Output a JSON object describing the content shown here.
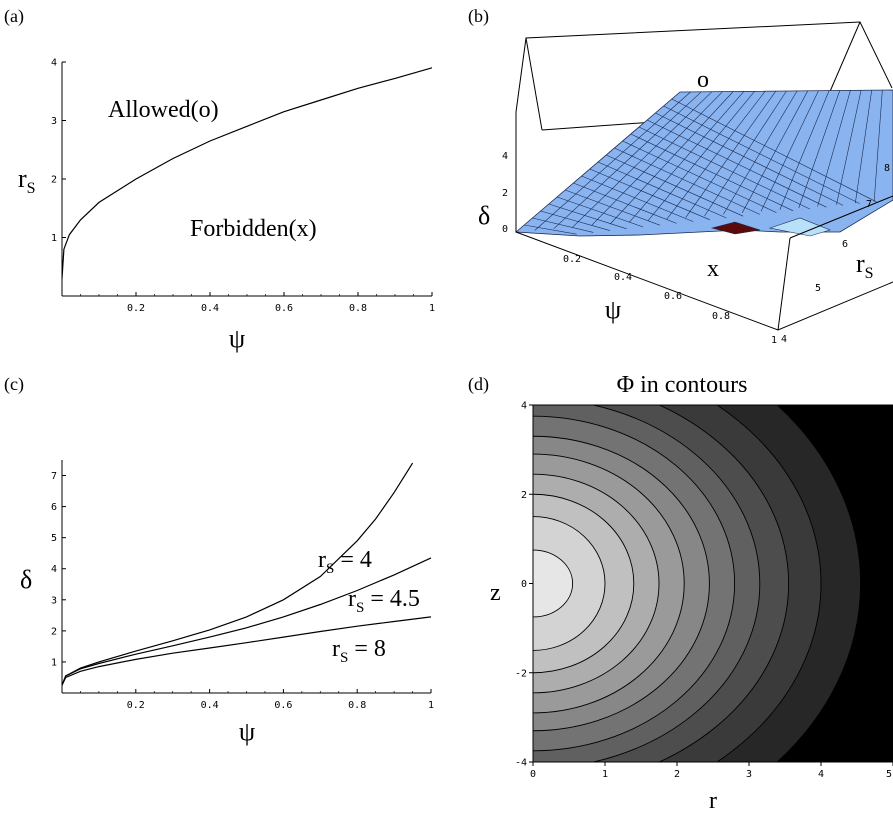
{
  "panels": {
    "a": {
      "label": "(a)"
    },
    "b": {
      "label": "(b)"
    },
    "c": {
      "label": "(c)"
    },
    "d": {
      "label": "(d)"
    }
  },
  "chart_data": [
    {
      "id": "a",
      "type": "line",
      "title": "",
      "xlabel": "ψ",
      "ylabel": "r",
      "ylabel_sub": "S",
      "xlim": [
        0,
        1
      ],
      "ylim": [
        0,
        4
      ],
      "xticks": [
        "0.2",
        "0.4",
        "0.6",
        "0.8",
        "1"
      ],
      "xtick_values": [
        0.2,
        0.4,
        0.6,
        0.8,
        1
      ],
      "yticks": [
        "1",
        "2",
        "3",
        "4"
      ],
      "ytick_values": [
        1,
        2,
        3,
        4
      ],
      "grid": false,
      "series": [
        {
          "x": [
            0,
            0.005,
            0.02,
            0.05,
            0.1,
            0.2,
            0.3,
            0.4,
            0.5,
            0.6,
            0.7,
            0.8,
            0.9,
            1.0
          ],
          "y": [
            0.3,
            0.8,
            1.05,
            1.3,
            1.6,
            2.0,
            2.35,
            2.65,
            2.9,
            3.15,
            3.35,
            3.55,
            3.72,
            3.9
          ]
        }
      ],
      "annotations": [
        {
          "text": "Allowed(o)",
          "x": 0.3,
          "y": 3.3
        },
        {
          "text": "Forbidden(x)",
          "x": 0.5,
          "y": 1.35
        }
      ]
    },
    {
      "id": "b",
      "type": "surface3d",
      "title": "",
      "xlabel": "ψ",
      "ylabel": "r",
      "ylabel_sub": "S",
      "zlabel": "δ",
      "xlim": [
        0,
        1
      ],
      "ylim": [
        4,
        8
      ],
      "zlim": [
        0,
        4
      ],
      "xticks": [
        "0.2",
        "0.4",
        "0.6",
        "0.8",
        "1"
      ],
      "yticks": [
        "4",
        "5",
        "6",
        "7",
        "8"
      ],
      "zticks": [
        "0",
        "2",
        "4"
      ],
      "colors": {
        "surface": "#8ab4f0",
        "lines": "#1a2a50",
        "edge": "#b8e0f8",
        "forbidden": "#5a0a0a"
      },
      "annotations": [
        {
          "text": "o"
        },
        {
          "text": "x"
        }
      ]
    },
    {
      "id": "c",
      "type": "line",
      "title": "",
      "xlabel": "ψ",
      "ylabel": "δ",
      "xlim": [
        0,
        1
      ],
      "ylim": [
        0,
        7.5
      ],
      "xticks": [
        "0.2",
        "0.4",
        "0.6",
        "0.8",
        "1"
      ],
      "xtick_values": [
        0.2,
        0.4,
        0.6,
        0.8,
        1
      ],
      "yticks": [
        "1",
        "2",
        "3",
        "4",
        "5",
        "6",
        "7"
      ],
      "ytick_values": [
        1,
        2,
        3,
        4,
        5,
        6,
        7
      ],
      "grid": false,
      "series": [
        {
          "r": "r",
          "sub": "S",
          "eq": " = 4",
          "x": [
            0,
            0.01,
            0.05,
            0.1,
            0.2,
            0.3,
            0.4,
            0.5,
            0.6,
            0.7,
            0.8,
            0.85,
            0.9,
            0.95
          ],
          "y": [
            0.25,
            0.55,
            0.8,
            1.0,
            1.35,
            1.68,
            2.03,
            2.45,
            3.0,
            3.75,
            4.9,
            5.6,
            6.45,
            7.4
          ]
        },
        {
          "r": "r",
          "sub": "S",
          "eq": " = 4.5",
          "x": [
            0,
            0.01,
            0.05,
            0.1,
            0.2,
            0.3,
            0.4,
            0.5,
            0.6,
            0.7,
            0.8,
            0.9,
            1.0
          ],
          "y": [
            0.25,
            0.55,
            0.78,
            0.95,
            1.25,
            1.52,
            1.8,
            2.1,
            2.45,
            2.85,
            3.3,
            3.8,
            4.35
          ]
        },
        {
          "r": "r",
          "sub": "S",
          "eq": " = 8",
          "x": [
            0,
            0.01,
            0.05,
            0.1,
            0.2,
            0.3,
            0.4,
            0.5,
            0.6,
            0.7,
            0.8,
            0.9,
            1.0
          ],
          "y": [
            0.25,
            0.5,
            0.7,
            0.85,
            1.08,
            1.28,
            1.45,
            1.62,
            1.8,
            1.98,
            2.15,
            2.3,
            2.45
          ]
        }
      ]
    },
    {
      "id": "d",
      "type": "contour",
      "title": "Φ in contours",
      "xlabel": "r",
      "ylabel": "z",
      "xlim": [
        0,
        5
      ],
      "ylim": [
        -4,
        4
      ],
      "xticks": [
        "0",
        "1",
        "2",
        "3",
        "4",
        "5"
      ],
      "xtick_values": [
        0,
        1,
        2,
        3,
        4,
        5
      ],
      "yticks": [
        "-4",
        "-2",
        "0",
        "2",
        "4"
      ],
      "ytick_values": [
        -4,
        -2,
        0,
        2,
        4
      ],
      "levels": 11,
      "colors": {
        "lightest": "#e6e6e6",
        "darkest": "#000000"
      }
    }
  ]
}
